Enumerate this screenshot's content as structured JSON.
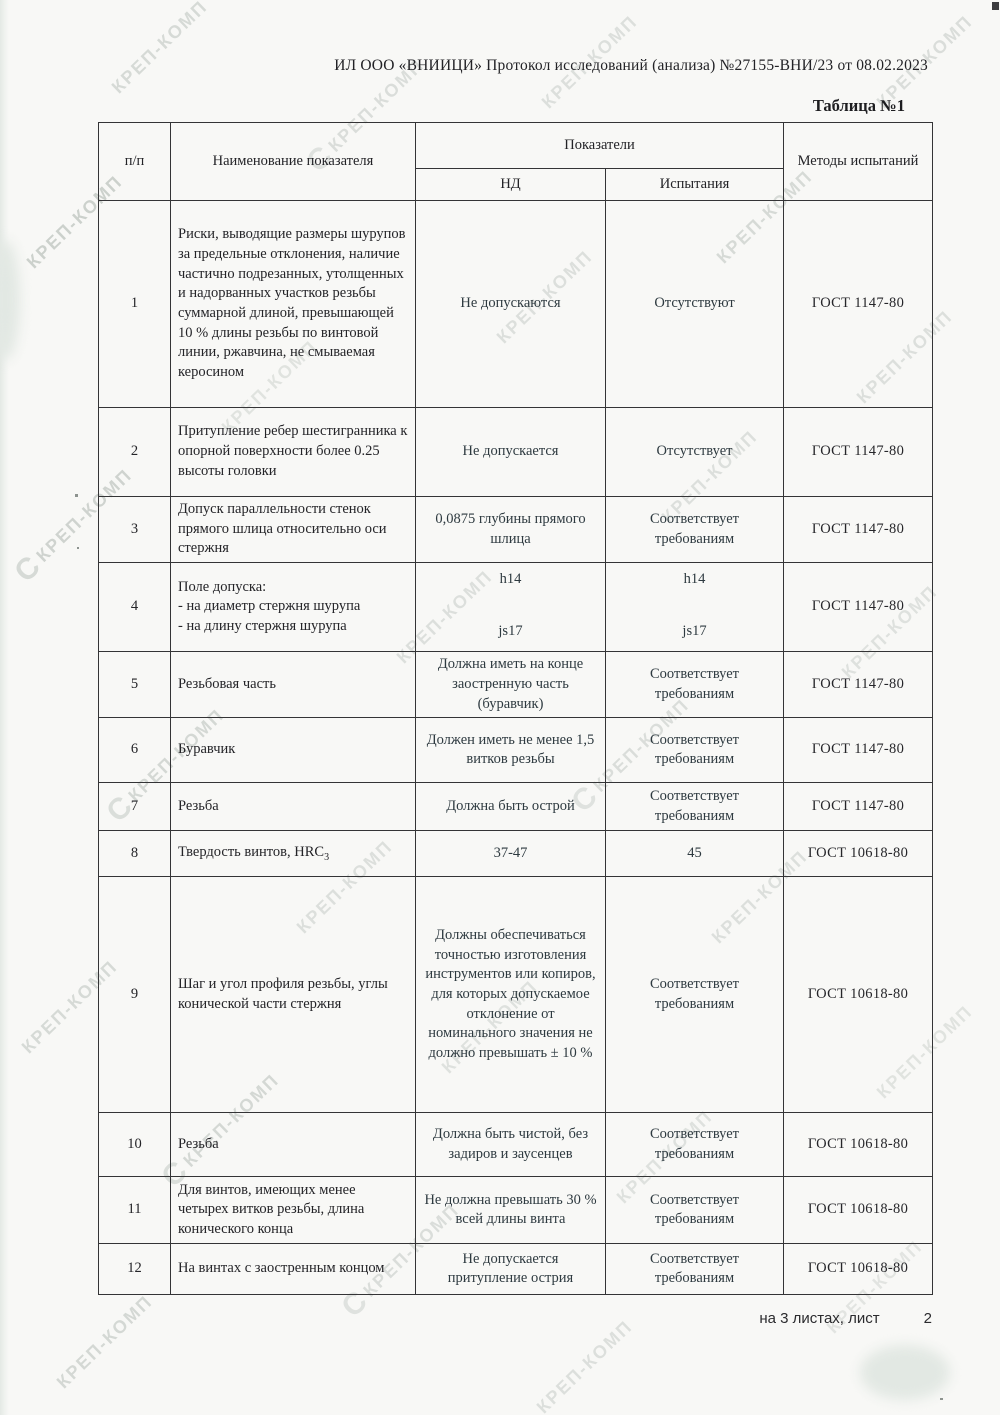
{
  "page": {
    "header_line": "ИЛ ООО «ВНИИЦИ»  Протокол исследований (анализа)  №27155-ВНИ/23 от  08.02.2023",
    "table_caption": "Таблица №1",
    "footer": {
      "sheets_label": "на 3  листах, лист",
      "sheet_number": "2"
    }
  },
  "watermark": {
    "text": "КРЕП-КОМП",
    "logo_glyph": "С",
    "color": "#97a29b"
  },
  "table": {
    "header": {
      "col_num": "п/п",
      "col_name": "Наименование показателя",
      "col_indicators": "Показатели",
      "col_nd": "НД",
      "col_test": "Испытания",
      "col_methods": "Методы испытаний"
    },
    "rows": [
      {
        "num": "1",
        "name": "Риски, выводящие размеры шурупов за предельные отклонения, наличие частично подрезанных, утолщенных и надорванных участков резьбы суммарной длиной, превышающей 10 % длины резьбы по винтовой линии, ржавчина, не смываемая керосином",
        "nd": "Не допускаются",
        "test": "Отсутствуют",
        "method": "ГОСТ 1147-80"
      },
      {
        "num": "2",
        "name": "Притупление ребер шестигранника к опорной поверхности более 0.25 высоты головки",
        "nd": "Не допускается",
        "test": "Отсутствует",
        "method": "ГОСТ 1147-80"
      },
      {
        "num": "3",
        "name": "Допуск параллельности стенок прямого шлица относительно оси стержня",
        "nd": "0,0875 глубины прямого шлица",
        "test": "Соответствует требованиям",
        "method": "ГОСТ 1147-80"
      },
      {
        "num": "4",
        "name_l1": "Поле допуска:",
        "name_l2": "- на диаметр стержня шурупа",
        "name_l3": "- на длину стержня шурупа",
        "nd_top": "h14",
        "nd_bottom": "js17",
        "test_top": "h14",
        "test_bottom": "js17",
        "method": "ГОСТ 1147-80"
      },
      {
        "num": "5",
        "name": "Резьбовая часть",
        "nd": "Должна иметь на конце заостренную часть (буравчик)",
        "test": "Соответствует требованиям",
        "method": "ГОСТ 1147-80"
      },
      {
        "num": "6",
        "name": "Буравчик",
        "nd": "Должен иметь не менее 1,5 витков резьбы",
        "test": "Соответствует требованиям",
        "method": "ГОСТ 1147-80"
      },
      {
        "num": "7",
        "name": "Резьба",
        "nd": "Должна быть острой",
        "test": "Соответствует требованиям",
        "method": "ГОСТ 1147-80"
      },
      {
        "num": "8",
        "name_main": "Твердость винтов, HRC",
        "name_sub": "3",
        "nd": "37-47",
        "test": "45",
        "method": "ГОСТ 10618-80"
      },
      {
        "num": "9",
        "name": "Шаг и угол профиля резьбы, углы конической части стержня",
        "nd": "Должны обеспечиваться точностью изготовления инструментов или копиров, для которых допускаемое отклонение от номинального значения не должно превышать ± 10 %",
        "test": "Соответствует требованиям",
        "method": "ГОСТ 10618-80"
      },
      {
        "num": "10",
        "name": "Резьба",
        "nd": "Должна быть чистой, без задиров и заусенцев",
        "test": "Соответствует требованиям",
        "method": "ГОСТ 10618-80"
      },
      {
        "num": "11",
        "name": "Для винтов, имеющих менее четырех витков резьбы, длина конического конца",
        "nd": "Не должна превышать 30 % всей длины винта",
        "test": "Соответствует требованиям",
        "method": "ГОСТ 10618-80"
      },
      {
        "num": "12",
        "name": "На винтах с заостренным концом",
        "nd": "Не допускается притупление острия",
        "test": "Соответствует требованиям",
        "method": "ГОСТ 10618-80"
      }
    ]
  }
}
